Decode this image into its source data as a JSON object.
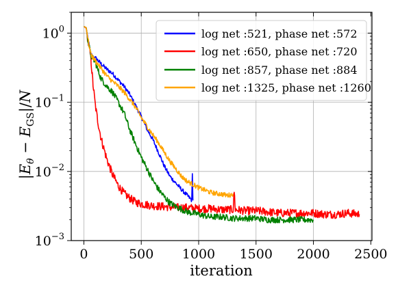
{
  "chart_data": {
    "type": "line",
    "title": "",
    "xlabel": "iteration",
    "ylabel": "|E_θ − E_GS|/N",
    "yscale": "log",
    "xlim": [
      -110,
      2510
    ],
    "ylim": [
      0.001,
      2.0
    ],
    "xticks": [
      0,
      500,
      1000,
      1500,
      2000,
      2500
    ],
    "yticks": [
      {
        "value": 1,
        "base": "10",
        "exp": "0"
      },
      {
        "value": 0.1,
        "base": "10",
        "exp": "−1"
      },
      {
        "value": 0.01,
        "base": "10",
        "exp": "−2"
      },
      {
        "value": 0.001,
        "base": "10",
        "exp": "−3"
      }
    ],
    "grid": true,
    "legend_position": "top-right",
    "series": [
      {
        "name": "log net :521, phase net :572",
        "color": "#0000ff",
        "noise": 0.03,
        "points": [
          [
            0,
            1.25
          ],
          [
            20,
            1.2
          ],
          [
            40,
            0.75
          ],
          [
            60,
            0.5
          ],
          [
            80,
            0.45
          ],
          [
            100,
            0.44
          ],
          [
            150,
            0.36
          ],
          [
            200,
            0.3
          ],
          [
            250,
            0.26
          ],
          [
            300,
            0.21
          ],
          [
            350,
            0.17
          ],
          [
            400,
            0.13
          ],
          [
            450,
            0.09
          ],
          [
            500,
            0.062
          ],
          [
            550,
            0.041
          ],
          [
            600,
            0.029
          ],
          [
            650,
            0.019
          ],
          [
            700,
            0.012
          ],
          [
            750,
            0.0085
          ],
          [
            800,
            0.0068
          ],
          [
            850,
            0.0055
          ],
          [
            900,
            0.0045
          ],
          [
            930,
            0.004
          ],
          [
            940,
            0.0038
          ],
          [
            945,
            0.009
          ],
          [
            950,
            0.0038
          ]
        ]
      },
      {
        "name": "log net :650, phase net :720",
        "color": "#ff0000",
        "noise": 0.06,
        "points": [
          [
            0,
            1.25
          ],
          [
            20,
            1.18
          ],
          [
            40,
            0.7
          ],
          [
            60,
            0.45
          ],
          [
            70,
            0.28
          ],
          [
            80,
            0.18
          ],
          [
            100,
            0.09
          ],
          [
            120,
            0.055
          ],
          [
            150,
            0.03
          ],
          [
            200,
            0.015
          ],
          [
            250,
            0.009
          ],
          [
            300,
            0.0062
          ],
          [
            350,
            0.0048
          ],
          [
            400,
            0.0041
          ],
          [
            450,
            0.0036
          ],
          [
            500,
            0.0034
          ],
          [
            600,
            0.0032
          ],
          [
            700,
            0.0031
          ],
          [
            800,
            0.003
          ],
          [
            900,
            0.003
          ],
          [
            1000,
            0.0029
          ],
          [
            1100,
            0.0029
          ],
          [
            1200,
            0.0028
          ],
          [
            1300,
            0.0028
          ],
          [
            1310,
            0.0052
          ],
          [
            1320,
            0.0028
          ],
          [
            1400,
            0.0027
          ],
          [
            1500,
            0.0027
          ],
          [
            1600,
            0.0026
          ],
          [
            1700,
            0.0025
          ],
          [
            1800,
            0.0025
          ],
          [
            1900,
            0.0025
          ],
          [
            2000,
            0.0025
          ],
          [
            2100,
            0.0024
          ],
          [
            2200,
            0.0024
          ],
          [
            2300,
            0.0025
          ],
          [
            2400,
            0.0024
          ]
        ]
      },
      {
        "name": "log net :857, phase net :884",
        "color": "#008000",
        "noise": 0.045,
        "points": [
          [
            0,
            1.25
          ],
          [
            20,
            1.2
          ],
          [
            40,
            0.72
          ],
          [
            60,
            0.48
          ],
          [
            80,
            0.42
          ],
          [
            100,
            0.38
          ],
          [
            120,
            0.3
          ],
          [
            150,
            0.22
          ],
          [
            200,
            0.17
          ],
          [
            250,
            0.14
          ],
          [
            300,
            0.1
          ],
          [
            350,
            0.07
          ],
          [
            400,
            0.04
          ],
          [
            450,
            0.025
          ],
          [
            500,
            0.016
          ],
          [
            550,
            0.011
          ],
          [
            600,
            0.0075
          ],
          [
            650,
            0.0055
          ],
          [
            700,
            0.0043
          ],
          [
            750,
            0.0035
          ],
          [
            800,
            0.0031
          ],
          [
            900,
            0.0026
          ],
          [
            1000,
            0.0024
          ],
          [
            1100,
            0.0022
          ],
          [
            1200,
            0.0022
          ],
          [
            1300,
            0.0021
          ],
          [
            1400,
            0.0021
          ],
          [
            1500,
            0.0021
          ],
          [
            1600,
            0.002
          ],
          [
            1700,
            0.002
          ],
          [
            1800,
            0.002
          ],
          [
            1900,
            0.002
          ],
          [
            2000,
            0.002
          ]
        ]
      },
      {
        "name": "log net :1325, phase net :1260",
        "color": "#ffa500",
        "noise": 0.035,
        "points": [
          [
            0,
            1.25
          ],
          [
            20,
            1.2
          ],
          [
            40,
            0.75
          ],
          [
            60,
            0.5
          ],
          [
            80,
            0.44
          ],
          [
            100,
            0.4
          ],
          [
            150,
            0.31
          ],
          [
            200,
            0.24
          ],
          [
            250,
            0.2
          ],
          [
            300,
            0.17
          ],
          [
            350,
            0.14
          ],
          [
            400,
            0.11
          ],
          [
            450,
            0.085
          ],
          [
            500,
            0.06
          ],
          [
            550,
            0.045
          ],
          [
            600,
            0.034
          ],
          [
            650,
            0.026
          ],
          [
            700,
            0.019
          ],
          [
            750,
            0.014
          ],
          [
            800,
            0.011
          ],
          [
            850,
            0.0085
          ],
          [
            900,
            0.0072
          ],
          [
            950,
            0.0065
          ],
          [
            1000,
            0.0058
          ],
          [
            1050,
            0.0054
          ],
          [
            1100,
            0.005
          ],
          [
            1150,
            0.0048
          ],
          [
            1200,
            0.0047
          ],
          [
            1250,
            0.0045
          ],
          [
            1280,
            0.0046
          ],
          [
            1300,
            0.0048
          ]
        ]
      }
    ]
  }
}
